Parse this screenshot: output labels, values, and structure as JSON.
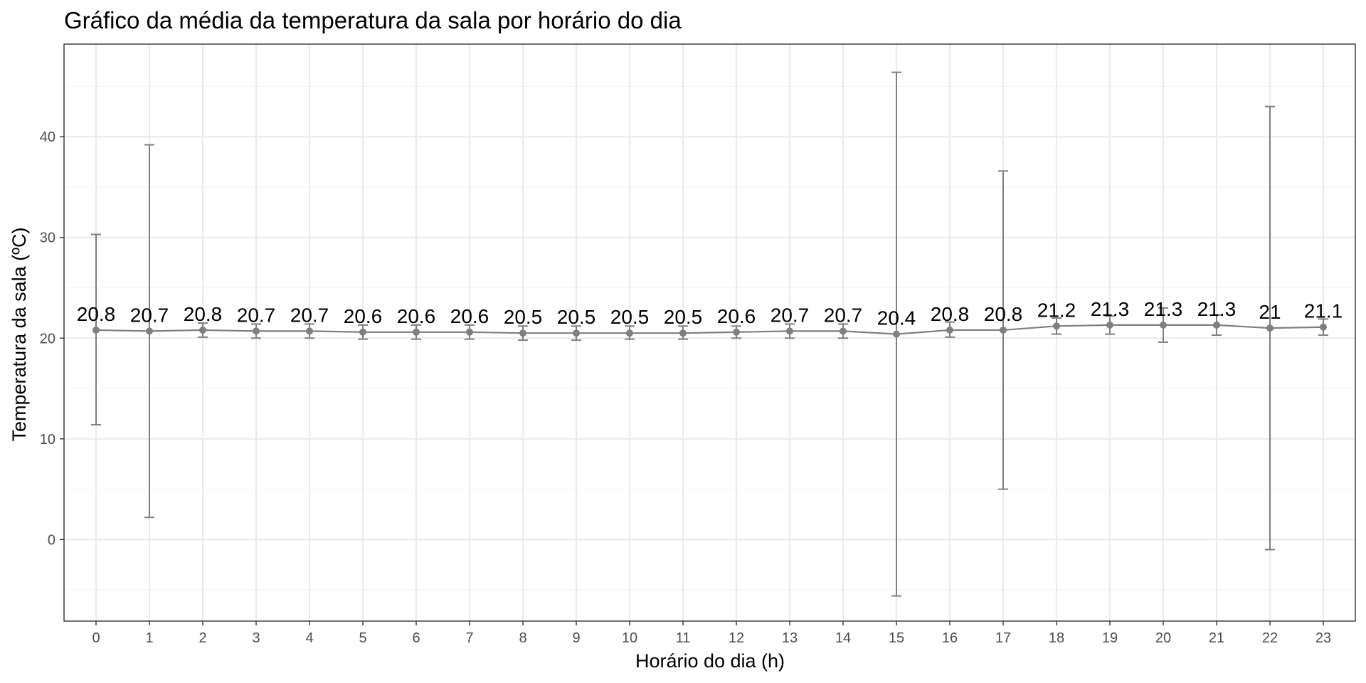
{
  "chart_data": {
    "type": "line",
    "title": "Gráfico da média da temperatura da sala por horário do dia",
    "xlabel": "Horário do dia (h)",
    "ylabel": "Temperatura da sala (ºC)",
    "categories": [
      "0",
      "1",
      "2",
      "3",
      "4",
      "5",
      "6",
      "7",
      "8",
      "9",
      "10",
      "11",
      "12",
      "13",
      "14",
      "15",
      "16",
      "17",
      "18",
      "19",
      "20",
      "21",
      "22",
      "23"
    ],
    "series": [
      {
        "values": [
          20.8,
          20.7,
          20.8,
          20.7,
          20.7,
          20.6,
          20.6,
          20.6,
          20.5,
          20.5,
          20.5,
          20.5,
          20.6,
          20.7,
          20.7,
          20.4,
          20.8,
          20.8,
          21.2,
          21.3,
          21.3,
          21.3,
          21.0,
          21.1
        ],
        "labels": [
          "20.8",
          "20.7",
          "20.8",
          "20.7",
          "20.7",
          "20.6",
          "20.6",
          "20.6",
          "20.5",
          "20.5",
          "20.5",
          "20.5",
          "20.6",
          "20.7",
          "20.7",
          "20.4",
          "20.8",
          "20.8",
          "21.2",
          "21.3",
          "21.3",
          "21.3",
          "21",
          "21.1"
        ],
        "error_low": [
          11.4,
          2.2,
          20.1,
          20.0,
          20.0,
          19.9,
          19.9,
          19.9,
          19.8,
          19.8,
          19.9,
          19.9,
          20.0,
          20.0,
          20.0,
          -5.6,
          20.1,
          5.0,
          20.4,
          20.4,
          19.6,
          20.3,
          -1.0,
          20.3
        ],
        "error_high": [
          30.3,
          39.2,
          21.5,
          21.4,
          21.4,
          21.3,
          21.3,
          21.3,
          21.2,
          21.2,
          21.2,
          21.2,
          21.2,
          21.4,
          21.4,
          46.4,
          21.6,
          36.6,
          22.0,
          22.2,
          23.0,
          22.3,
          43.0,
          21.9
        ]
      }
    ],
    "y_ticks": [
      0,
      10,
      20,
      30,
      40
    ],
    "ylim": [
      -8.1,
      49.2
    ],
    "grid": true,
    "legend": "none",
    "colors": {
      "series": "#7f7f7f",
      "grid_major": "#ebebeb",
      "grid_minor": "#f5f5f5",
      "panel_border": "#333333",
      "tick_text": "#4d4d4d",
      "text": "#000000",
      "background": "#ffffff"
    }
  }
}
